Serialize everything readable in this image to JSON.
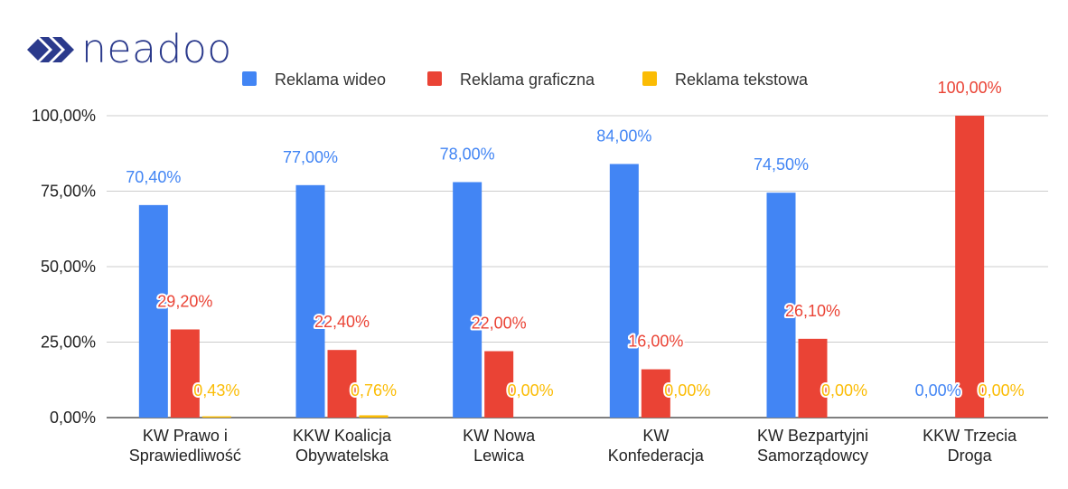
{
  "brand": {
    "name": "neadoo",
    "logo_icon": "chevron-double-right-icon",
    "color": "#2b3a8c"
  },
  "chart_data": {
    "type": "bar",
    "categories": [
      [
        "KW Prawo i",
        "Sprawiedliwość"
      ],
      [
        "KKW Koalicja",
        "Obywatelska"
      ],
      [
        "KW Nowa",
        "Lewica"
      ],
      [
        "KW",
        "Konfederacja"
      ],
      [
        "KW Bezpartyjni",
        "Samorządowcy"
      ],
      [
        "KKW Trzecia",
        "Droga"
      ]
    ],
    "series": [
      {
        "name": "Reklama wideo",
        "color": "#4285f4",
        "values": [
          70.4,
          77.0,
          78.0,
          84.0,
          74.5,
          0.0
        ],
        "labels": [
          "70,40%",
          "77,00%",
          "78,00%",
          "84,00%",
          "74,50%",
          "0,00%"
        ]
      },
      {
        "name": "Reklama graficzna",
        "color": "#ea4335",
        "values": [
          29.2,
          22.4,
          22.0,
          16.0,
          26.1,
          100.0
        ],
        "labels": [
          "29,20%",
          "22,40%",
          "22,00%",
          "16,00%",
          "26,10%",
          "100,00%"
        ]
      },
      {
        "name": "Reklama tekstowa",
        "color": "#fbbc04",
        "values": [
          0.43,
          0.76,
          0.0,
          0.0,
          0.0,
          0.0
        ],
        "labels": [
          "0,43%",
          "0,76%",
          "0,00%",
          "0,00%",
          "0,00%",
          "0,00%"
        ]
      }
    ],
    "yticks": [
      {
        "value": 0,
        "label": "0,00%"
      },
      {
        "value": 25,
        "label": "25,00%"
      },
      {
        "value": 50,
        "label": "50,00%"
      },
      {
        "value": 75,
        "label": "75,00%"
      },
      {
        "value": 100,
        "label": "100,00%"
      }
    ],
    "ylim": [
      0,
      100
    ],
    "grid": true,
    "legend": "top",
    "title": "",
    "xlabel": "",
    "ylabel": ""
  }
}
